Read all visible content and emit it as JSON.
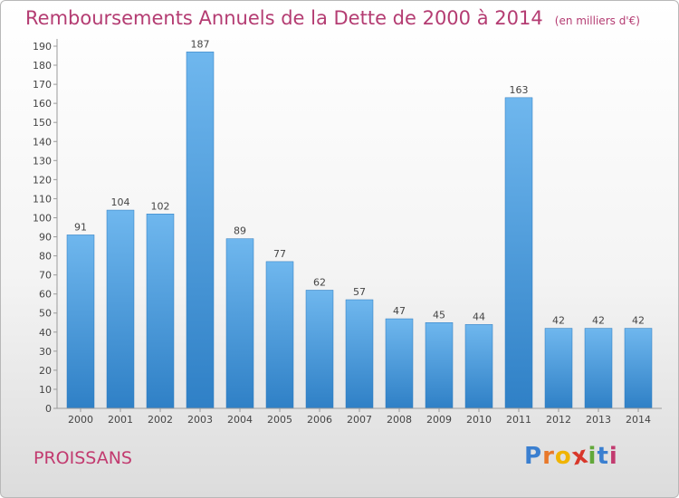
{
  "header": {
    "title": "Remboursements Annuels de la Dette de 2000 à 2014",
    "units": "(en milliers d'€)"
  },
  "footer": {
    "city": "PROISSANS",
    "logo_letters": [
      "P",
      "r",
      "o",
      "x",
      "i",
      "t",
      "i"
    ],
    "logo_colors": [
      "#3a7fd0",
      "#e8782a",
      "#f0b400",
      "#d8372a",
      "#62a83a",
      "#3a7fd0",
      "#c23a6f"
    ]
  },
  "colors": {
    "bar_light": "#6fb7ee",
    "bar_dark": "#2f80c6",
    "title": "#b43c72"
  },
  "chart_data": {
    "type": "bar",
    "title": "Remboursements Annuels de la Dette de 2000 à 2014",
    "xlabel": "",
    "ylabel": "",
    "ylim": [
      0,
      190
    ],
    "ytick_step": 10,
    "grid": false,
    "categories": [
      "2000",
      "2001",
      "2002",
      "2003",
      "2004",
      "2005",
      "2006",
      "2007",
      "2008",
      "2009",
      "2010",
      "2011",
      "2012",
      "2013",
      "2014"
    ],
    "values": [
      91,
      104,
      102,
      187,
      89,
      77,
      62,
      57,
      47,
      45,
      44,
      163,
      42,
      42,
      42
    ]
  }
}
